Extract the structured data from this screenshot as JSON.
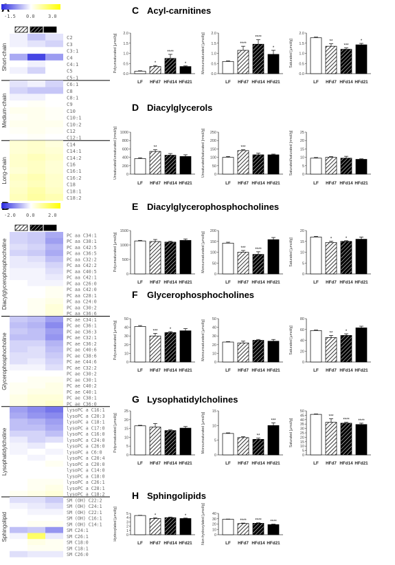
{
  "colors": {
    "low": "#2a2ae0",
    "mid": "#ffffff",
    "high": "#ffff00",
    "bar_lf": "#ffffff",
    "bar_hf21": "#000000",
    "axis": "#333333",
    "label": "#888888"
  },
  "left_panel": {
    "panel_a": {
      "letter": "A",
      "legend": {
        "ticks": [
          "-1.5",
          "0.0",
          "3.0"
        ],
        "min": -1.5,
        "max": 3.0
      },
      "groups": [
        {
          "name": "Short-chain",
          "rows": [
            "C2",
            "C3",
            "C3:1",
            "C4",
            "C4:1",
            "C5",
            "C5:1"
          ]
        },
        {
          "name": "Medium-chain",
          "rows": [
            "C6:1",
            "C8",
            "C8:1",
            "C9",
            "C10",
            "C10:1",
            "C10:2",
            "C12",
            "C12:1"
          ]
        },
        {
          "name": "Long-chain",
          "rows": [
            "C14",
            "C14:1",
            "C14:2",
            "C16",
            "C16:1",
            "C16:2",
            "C18",
            "C18:1",
            "C18:2"
          ]
        }
      ],
      "heat_values": [
        [
          -0.1,
          -0.4,
          -0.2
        ],
        [
          -0.1,
          -0.2,
          -0.3
        ],
        [
          0.0,
          0.0,
          0.0
        ],
        [
          -0.6,
          -1.3,
          -0.7
        ],
        [
          0.0,
          -0.1,
          0.0
        ],
        [
          -0.1,
          -0.3,
          0.0
        ],
        [
          0.0,
          0.0,
          0.0
        ],
        [
          -0.2,
          -0.1,
          -0.3
        ],
        [
          -0.3,
          -0.4,
          -0.4
        ],
        [
          -0.1,
          -0.1,
          0.0
        ],
        [
          0.0,
          0.1,
          0.0
        ],
        [
          0.2,
          0.2,
          0.1
        ],
        [
          0.1,
          0.2,
          0.1
        ],
        [
          0.2,
          0.2,
          0.2
        ],
        [
          0.1,
          0.2,
          0.1
        ],
        [
          0.0,
          0.1,
          0.0
        ],
        [
          0.5,
          0.6,
          0.4
        ],
        [
          0.5,
          0.6,
          0.5
        ],
        [
          0.6,
          0.8,
          0.6
        ],
        [
          0.6,
          0.7,
          0.5
        ],
        [
          0.5,
          0.7,
          0.5
        ],
        [
          0.7,
          0.9,
          0.6
        ],
        [
          0.6,
          0.8,
          0.6
        ],
        [
          0.7,
          1.0,
          0.7
        ],
        [
          0.8,
          1.1,
          0.9
        ]
      ]
    },
    "panel_b": {
      "letter": "B",
      "legend": {
        "ticks": [
          "-2.0",
          "0.0",
          "2.0"
        ],
        "min": -2.0,
        "max": 2.0
      },
      "groups": [
        {
          "name": "Diacylglycerophosphocholine",
          "rows": [
            "PC aa C34:1",
            "PC aa C38:1",
            "PC aa C42:5",
            "PC aa C36:5",
            "PC aa C32:2",
            "PC aa C42:2",
            "PC aa C40:5",
            "PC aa C42:1",
            "PC aa C26:0",
            "PC aa C42:0",
            "PC aa C28:1",
            "PC aa C24:0",
            "PC aa C30:2",
            "PC aa C36:6"
          ]
        },
        {
          "name": "Glycerophosphocholine",
          "rows": [
            "PC ae C34:1",
            "PC ae C36:1",
            "PC ae C36:3",
            "PC ae C32:1",
            "PC ae C36:2",
            "PC ae C40:6",
            "PC ae C38:6",
            "PC ae C44:6",
            "PC ae C32:2",
            "PC ae C30:2",
            "PC ae C30:1",
            "PC ae C40:2",
            "PC ae C40:1",
            "PC ae C38:1",
            "PC ae C36:0"
          ]
        },
        {
          "name": "Lysophatidylcholine",
          "rows": [
            "lysoPC a C16:1",
            "lysoPC a C20:3",
            "lysoPC a C18:1",
            "lysoPC a C17:0",
            "lysoPC a C16:0",
            "lysoPC a C24:0",
            "lysoPC a C26:0",
            "lysoPC a C6:0",
            "lysoPC a C20:4",
            "lysoPC a C20:0",
            "lysoPC a C14:0",
            "lysoPC a C18:0",
            "lysoPC a C26:1",
            "lysoPC a C28:1",
            "lysoPC a C18:2"
          ]
        },
        {
          "name": "Sphingolipid",
          "rows": [
            "SM (OH) C22:2",
            "SM (OH) C24:1",
            "SM (OH) C22:1",
            "SM (OH) C16:1",
            "SM (OH) C14:1",
            "SM C24:1",
            "SM C26:1",
            "SM C18:0",
            "SM C18:1",
            "SM C26:0"
          ]
        }
      ],
      "heat_values": [
        [
          -0.4,
          -0.5,
          -0.8
        ],
        [
          -0.4,
          -0.5,
          -0.9
        ],
        [
          -0.3,
          -0.4,
          -0.7
        ],
        [
          -0.4,
          -0.5,
          -0.8
        ],
        [
          -0.2,
          -0.3,
          -0.6
        ],
        [
          -0.2,
          -0.2,
          -0.4
        ],
        [
          -0.1,
          -0.1,
          -0.3
        ],
        [
          -0.1,
          -0.1,
          -0.2
        ],
        [
          0.0,
          -0.1,
          -0.1
        ],
        [
          0.0,
          0.0,
          0.1
        ],
        [
          0.0,
          0.0,
          0.1
        ],
        [
          0.0,
          0.1,
          0.2
        ],
        [
          0.0,
          0.1,
          0.3
        ],
        [
          0.0,
          0.1,
          0.3
        ],
        [
          -0.5,
          -0.6,
          -0.9
        ],
        [
          -0.6,
          -0.7,
          -1.1
        ],
        [
          -0.5,
          -0.6,
          -0.9
        ],
        [
          -0.6,
          -0.6,
          -1.0
        ],
        [
          -0.4,
          -0.4,
          -0.7
        ],
        [
          -0.4,
          -0.3,
          -0.6
        ],
        [
          -0.3,
          -0.3,
          -0.5
        ],
        [
          -0.3,
          -0.2,
          -0.4
        ],
        [
          -0.1,
          -0.1,
          -0.3
        ],
        [
          0.0,
          0.0,
          0.0
        ],
        [
          0.0,
          0.1,
          0.1
        ],
        [
          0.1,
          0.1,
          0.2
        ],
        [
          0.1,
          0.2,
          0.2
        ],
        [
          0.2,
          0.3,
          0.3
        ],
        [
          0.2,
          0.3,
          0.4
        ],
        [
          -0.9,
          -1.1,
          -1.3
        ],
        [
          -0.8,
          -1.0,
          -1.1
        ],
        [
          -0.6,
          -0.7,
          -0.9
        ],
        [
          -0.6,
          -0.6,
          -0.8
        ],
        [
          -0.4,
          -0.4,
          -0.6
        ],
        [
          -0.2,
          -0.4,
          -0.3
        ],
        [
          -0.1,
          -0.2,
          0.0
        ],
        [
          -0.1,
          0.0,
          -0.1
        ],
        [
          0.0,
          -0.1,
          0.0
        ],
        [
          0.0,
          0.0,
          0.1
        ],
        [
          0.0,
          0.0,
          0.0
        ],
        [
          0.0,
          0.0,
          0.0
        ],
        [
          0.0,
          0.1,
          0.1
        ],
        [
          0.0,
          0.1,
          0.2
        ],
        [
          0.1,
          0.2,
          0.3
        ],
        [
          -0.3,
          -0.3,
          -0.5
        ],
        [
          -0.1,
          -0.2,
          -0.3
        ],
        [
          0.0,
          -0.1,
          -0.1
        ],
        [
          0.0,
          0.0,
          0.0
        ],
        [
          0.0,
          0.1,
          0.1
        ],
        [
          -0.6,
          -0.5,
          -1.0
        ],
        [
          -0.1,
          1.2,
          -0.2
        ],
        [
          0.0,
          0.2,
          0.1
        ],
        [
          0.0,
          0.1,
          0.1
        ],
        [
          -0.3,
          -0.2,
          -0.2
        ]
      ]
    }
  },
  "chart_data": [
    {
      "panel": "C",
      "title": "Acyl-carnitines",
      "type": "bar",
      "ylabel": "Polyunsaturated [µmol/g]",
      "categories": [
        "LF",
        "HFd7",
        "HFd14",
        "HFd21"
      ],
      "values": [
        0.12,
        0.35,
        0.75,
        0.35
      ],
      "errors": [
        0.02,
        0.05,
        0.2,
        0.03
      ],
      "sig": [
        "",
        "*",
        "****",
        "*"
      ],
      "ylim": [
        0,
        2.0
      ],
      "yticks": [
        "0.0",
        "0.5",
        "1.0",
        "1.5",
        "2.0"
      ]
    },
    {
      "panel": "C",
      "type": "bar",
      "ylabel": "Monounsaturated [µmol/g]",
      "categories": [
        "LF",
        "HFd7",
        "HFd14",
        "HFd21"
      ],
      "values": [
        0.6,
        1.15,
        1.45,
        0.95
      ],
      "errors": [
        0.03,
        0.2,
        0.22,
        0.2
      ],
      "sig": [
        "",
        "****",
        "****",
        "*"
      ],
      "ylim": [
        0,
        2.0
      ],
      "yticks": [
        "0.0",
        "0.5",
        "1.0",
        "1.5",
        "2.0"
      ]
    },
    {
      "panel": "C",
      "type": "bar",
      "ylabel": "Saturated [µmol/g]",
      "categories": [
        "LF",
        "HFd7",
        "HFd14",
        "HFd21"
      ],
      "values": [
        1.77,
        1.35,
        1.2,
        1.42
      ],
      "errors": [
        0.03,
        0.12,
        0.07,
        0.07
      ],
      "sig": [
        "",
        "**",
        "***",
        "*"
      ],
      "ylim": [
        0,
        2.0
      ],
      "yticks": [
        "0.0",
        "0.5",
        "1.0",
        "1.5",
        "2.0"
      ]
    },
    {
      "panel": "D",
      "title": "Diacylglycerols",
      "type": "bar",
      "ylabel": "Unsaturated/unsaturated [nmol/g]",
      "categories": [
        "LF",
        "HFd7",
        "HFd14",
        "HFd21"
      ],
      "values": [
        370,
        540,
        450,
        420
      ],
      "errors": [
        20,
        40,
        40,
        40
      ],
      "sig": [
        "",
        "**",
        "",
        ""
      ],
      "ylim": [
        0,
        1000
      ],
      "yticks": [
        "0",
        "200",
        "400",
        "600",
        "800",
        "1000"
      ]
    },
    {
      "panel": "D",
      "type": "bar",
      "ylabel": "Unsaturated/saturated [nmol/g]",
      "categories": [
        "LF",
        "HFd7",
        "HFd14",
        "HFd21"
      ],
      "values": [
        100,
        140,
        115,
        115
      ],
      "errors": [
        5,
        5,
        10,
        4
      ],
      "sig": [
        "",
        "***",
        "",
        ""
      ],
      "ylim": [
        0,
        250
      ],
      "yticks": [
        "0",
        "50",
        "100",
        "150",
        "200",
        "250"
      ]
    },
    {
      "panel": "D",
      "type": "bar",
      "ylabel": "Saturated/saturated [nmol/g]",
      "categories": [
        "LF",
        "HFd7",
        "HFd14",
        "HFd21"
      ],
      "values": [
        9.5,
        10,
        9.5,
        8.8
      ],
      "errors": [
        0.4,
        0.4,
        1.1,
        0.3
      ],
      "sig": [
        "",
        "",
        "",
        ""
      ],
      "ylim": [
        0,
        25
      ],
      "yticks": [
        "0",
        "5",
        "10",
        "15",
        "20",
        "25"
      ]
    },
    {
      "panel": "E",
      "title": "Diacylglycerophosphocholines",
      "type": "bar",
      "ylabel": "Polyunsaturated [µmol/g]",
      "categories": [
        "LF",
        "HFd7",
        "HFd14",
        "HFd21"
      ],
      "values": [
        1140,
        1120,
        1100,
        1160
      ],
      "errors": [
        20,
        70,
        30,
        50
      ],
      "sig": [
        "",
        "",
        "",
        ""
      ],
      "ylim": [
        0,
        1500
      ],
      "yticks": [
        "0",
        "500",
        "1000",
        "1500"
      ]
    },
    {
      "panel": "E",
      "type": "bar",
      "ylabel": "Monounsaturated [µmol/g]",
      "categories": [
        "LF",
        "HFd7",
        "HFd14",
        "HFd21"
      ],
      "values": [
        142,
        100,
        90,
        158
      ],
      "errors": [
        4,
        8,
        12,
        10
      ],
      "sig": [
        "",
        "***",
        "****",
        ""
      ],
      "ylim": [
        0,
        200
      ],
      "yticks": [
        "0",
        "50",
        "100",
        "150",
        "200"
      ]
    },
    {
      "panel": "E",
      "type": "bar",
      "ylabel": "Saturated [µmol/g]",
      "categories": [
        "LF",
        "HFd7",
        "HFd14",
        "HFd21"
      ],
      "values": [
        17,
        14.5,
        15,
        16
      ],
      "errors": [
        0.3,
        0.6,
        0.3,
        1.0
      ],
      "sig": [
        "",
        "*",
        "*",
        ""
      ],
      "ylim": [
        0,
        20
      ],
      "yticks": [
        "0",
        "5",
        "10",
        "15",
        "20"
      ]
    },
    {
      "panel": "F",
      "title": "Glycerophosphocholines",
      "type": "bar",
      "ylabel": "Polyunsaturated [µmol/g]",
      "categories": [
        "LF",
        "HFd7",
        "HFd14",
        "HFd21"
      ],
      "values": [
        41,
        30,
        34,
        36
      ],
      "errors": [
        1,
        3,
        1,
        2.5
      ],
      "sig": [
        "",
        "***",
        "*",
        ""
      ],
      "ylim": [
        0,
        50
      ],
      "yticks": [
        "0",
        "10",
        "20",
        "30",
        "40",
        "50"
      ]
    },
    {
      "panel": "F",
      "type": "bar",
      "ylabel": "Monounsaturated [µmol/g]",
      "categories": [
        "LF",
        "HFd7",
        "HFd14",
        "HFd21"
      ],
      "values": [
        23,
        22,
        25,
        24
      ],
      "errors": [
        0.5,
        2,
        1,
        2
      ],
      "sig": [
        "",
        "",
        "",
        ""
      ],
      "ylim": [
        0,
        50
      ],
      "yticks": [
        "0",
        "10",
        "20",
        "30",
        "40",
        "50"
      ]
    },
    {
      "panel": "F",
      "type": "bar",
      "ylabel": "Saturated [µmol/g]",
      "categories": [
        "LF",
        "HFd7",
        "HFd14",
        "HFd21"
      ],
      "values": [
        58,
        45,
        49,
        63
      ],
      "errors": [
        1,
        4,
        3,
        3
      ],
      "sig": [
        "",
        "**",
        "*",
        ""
      ],
      "ylim": [
        0,
        80
      ],
      "yticks": [
        "0",
        "20",
        "40",
        "60",
        "80"
      ]
    },
    {
      "panel": "G",
      "title": "Lysophatidylcholines",
      "type": "bar",
      "ylabel": "Polyunsaturated [µmol/g]",
      "categories": [
        "LF",
        "HFd7",
        "HFd14",
        "HFd21"
      ],
      "values": [
        16.5,
        15.8,
        13.8,
        15.2
      ],
      "errors": [
        0.3,
        2.0,
        0.4,
        0.9
      ],
      "sig": [
        "",
        "",
        "",
        ""
      ],
      "ylim": [
        0,
        25
      ],
      "yticks": [
        "0",
        "5",
        "10",
        "15",
        "20",
        "25"
      ]
    },
    {
      "panel": "G",
      "type": "bar",
      "ylabel": "Monounsaturated [µmol/g]",
      "categories": [
        "LF",
        "HFd7",
        "HFd14",
        "HFd21"
      ],
      "values": [
        7.3,
        5.9,
        5.3,
        10.0
      ],
      "errors": [
        0.2,
        0.3,
        0.4,
        0.9
      ],
      "sig": [
        "",
        "",
        "**",
        "***"
      ],
      "ylim": [
        0,
        15
      ],
      "yticks": [
        "0",
        "5",
        "10",
        "15"
      ]
    },
    {
      "panel": "G",
      "type": "bar",
      "ylabel": "Saturated [µmol/g]",
      "categories": [
        "LF",
        "HFd7",
        "HFd14",
        "HFd21"
      ],
      "values": [
        46,
        37,
        36,
        34.5
      ],
      "errors": [
        0.5,
        4,
        1,
        1.5
      ],
      "sig": [
        "",
        "***",
        "****",
        "****"
      ],
      "ylim": [
        0,
        50
      ],
      "yticks": [
        "0",
        "5",
        "10",
        "15",
        "20",
        "25",
        "30",
        "35",
        "40",
        "45",
        "50"
      ]
    },
    {
      "panel": "H",
      "title": "Sphingolipids",
      "type": "bar",
      "ylabel": "Hydroxylated [µmol/g]",
      "categories": [
        "LF",
        "HFd7",
        "HFd14",
        "HFd21"
      ],
      "values": [
        4.5,
        3.8,
        4.0,
        3.8
      ],
      "errors": [
        0.05,
        0.15,
        0.15,
        0.1
      ],
      "sig": [
        "",
        "*",
        "",
        "*"
      ],
      "ylim": [
        0,
        5
      ],
      "yticks": [
        "0",
        "1",
        "2",
        "3",
        "4",
        "5"
      ]
    },
    {
      "panel": "H",
      "type": "bar",
      "ylabel": "Non-hydroxylated [µmol/g]",
      "categories": [
        "LF",
        "HFd7",
        "HFd14",
        "HFd21"
      ],
      "values": [
        29,
        21,
        21.5,
        19
      ],
      "errors": [
        0.4,
        0.8,
        0.8,
        0.8
      ],
      "sig": [
        "",
        "****",
        "****",
        "****"
      ],
      "ylim": [
        0,
        40
      ],
      "yticks": [
        "0",
        "10",
        "20",
        "30",
        "40"
      ]
    }
  ]
}
